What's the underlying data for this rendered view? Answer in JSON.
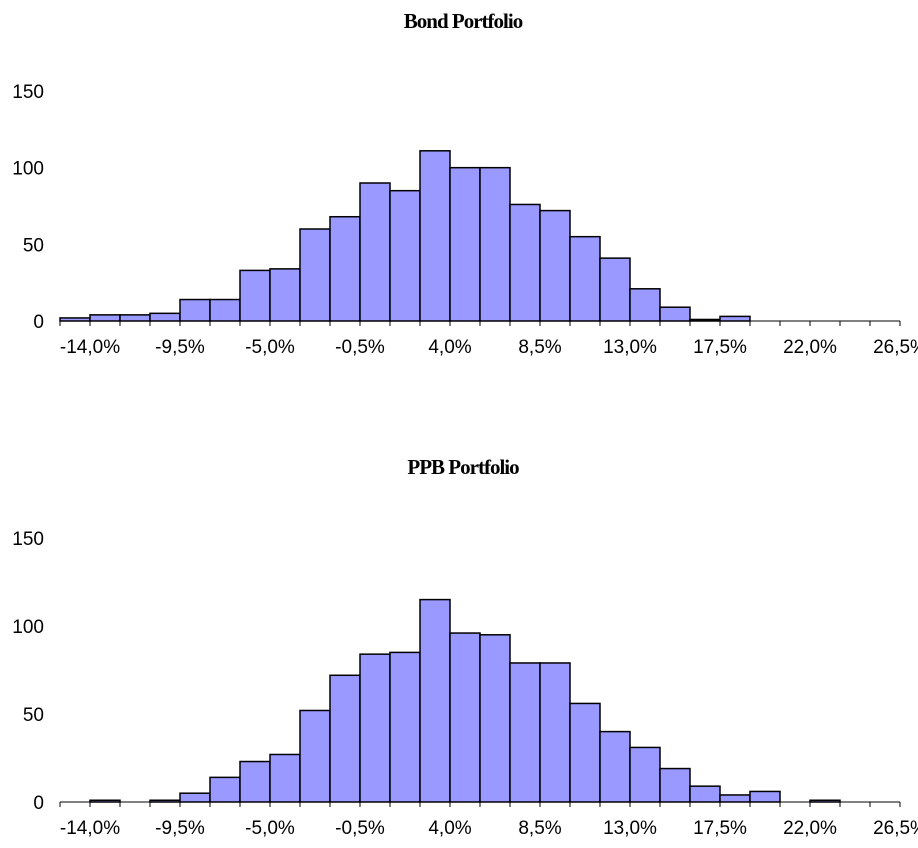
{
  "chart_data": [
    {
      "type": "bar",
      "title": "Bond Portfolio",
      "xlabel": "",
      "ylabel": "",
      "ylim": [
        0,
        150
      ],
      "yticks": [
        "0",
        "50",
        "100",
        "150"
      ],
      "xtick_labels": [
        "-14,0%",
        "-9,5%",
        "-5,0%",
        "-0,5%",
        "4,0%",
        "8,5%",
        "13,0%",
        "17,5%",
        "22,0%",
        "26,5%"
      ],
      "bar_color": "#9999ff",
      "values": [
        2,
        4,
        4,
        5,
        14,
        14,
        33,
        34,
        60,
        68,
        90,
        85,
        111,
        100,
        100,
        76,
        72,
        55,
        41,
        21,
        9,
        1,
        3,
        0,
        0,
        0,
        0,
        0
      ]
    },
    {
      "type": "bar",
      "title": "PPB Portfolio",
      "xlabel": "",
      "ylabel": "",
      "ylim": [
        0,
        150
      ],
      "yticks": [
        "0",
        "50",
        "100",
        "150"
      ],
      "xtick_labels": [
        "-14,0%",
        "-9,5%",
        "-5,0%",
        "-0,5%",
        "4,0%",
        "8,5%",
        "13,0%",
        "17,5%",
        "22,0%",
        "26,5%"
      ],
      "bar_color": "#9999ff",
      "values": [
        0,
        1,
        0,
        1,
        5,
        14,
        23,
        27,
        52,
        72,
        84,
        85,
        115,
        96,
        95,
        79,
        79,
        56,
        40,
        31,
        19,
        9,
        4,
        6,
        0,
        1,
        0
      ]
    }
  ]
}
